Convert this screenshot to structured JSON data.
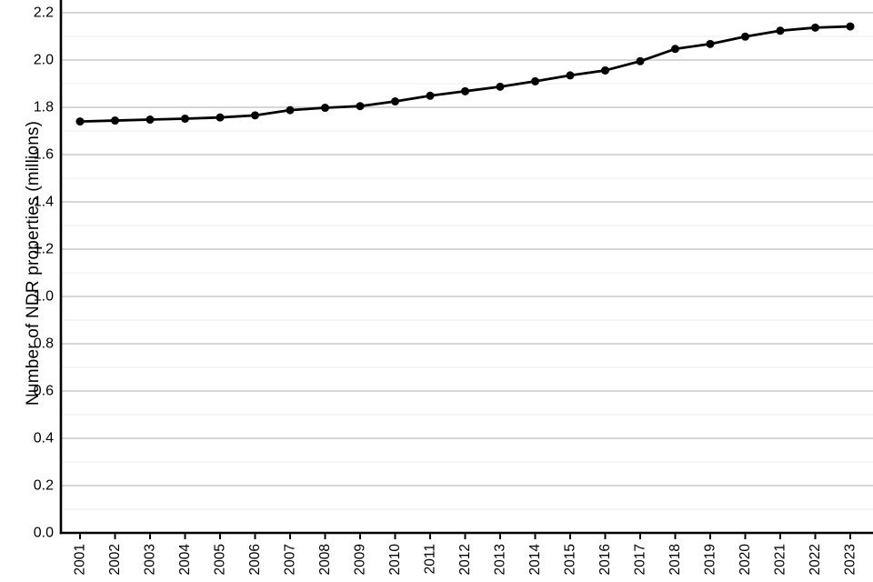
{
  "figure": {
    "background": "#ffffff",
    "title": "",
    "legend": "none"
  },
  "chart_data": {
    "type": "line",
    "title": "",
    "xlabel": "",
    "ylabel": "Number of NDR properties (millions)",
    "categories": [
      "2001",
      "2002",
      "2003",
      "2004",
      "2005",
      "2006",
      "2007",
      "2008",
      "2009",
      "2010",
      "2011",
      "2012",
      "2013",
      "2014",
      "2015",
      "2016",
      "2017",
      "2018",
      "2019",
      "2020",
      "2021",
      "2022",
      "2023"
    ],
    "series": [
      {
        "name": "NDR properties (millions)",
        "values": [
          1.74,
          1.744,
          1.748,
          1.752,
          1.757,
          1.766,
          1.788,
          1.798,
          1.805,
          1.825,
          1.849,
          1.868,
          1.887,
          1.91,
          1.935,
          1.956,
          1.995,
          2.047,
          2.068,
          2.099,
          2.124,
          2.137,
          2.142
        ]
      }
    ],
    "ylim": [
      0.0,
      2.25
    ],
    "yticks": {
      "values": [
        0.0,
        0.2,
        0.4,
        0.6,
        0.8,
        1.0,
        1.2,
        1.4,
        1.6,
        1.8,
        2.0,
        2.2
      ],
      "labels": [
        "0.0",
        "0.2",
        "0.4",
        "0.6",
        "0.8",
        "1.0",
        "1.2",
        "1.4",
        "1.6",
        "1.8",
        "2.0",
        "2.2"
      ]
    },
    "minor_gridlines": [
      0.1,
      0.3,
      0.5,
      0.7,
      0.9,
      1.1,
      1.3,
      1.5,
      1.7,
      1.9,
      2.1
    ],
    "grid": "horizontal major+minor",
    "legend_position": "none",
    "style": {
      "line_color": "#000000",
      "marker": "circle",
      "marker_color": "#000000",
      "axis_color": "#000000",
      "text_color": "#000000",
      "gridline_major_color": "#d6d6d6",
      "gridline_minor_color": "#ececec"
    }
  }
}
